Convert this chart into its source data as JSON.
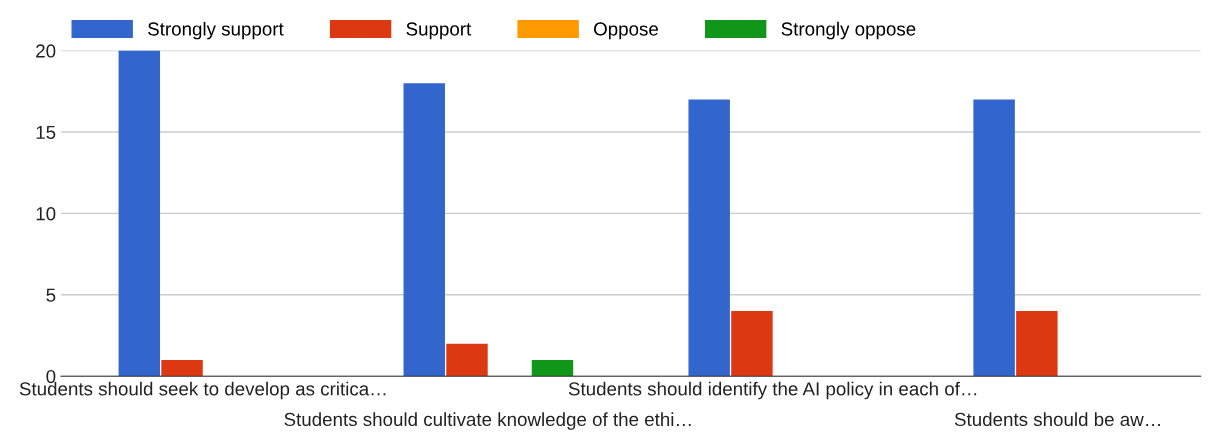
{
  "chart_data": {
    "type": "bar",
    "categories": [
      "Students should seek to develop as critica…",
      "Students should cultivate knowledge of the ethi…",
      "Students should identify the AI policy in each of…",
      "Students should be aw…"
    ],
    "series": [
      {
        "name": "Strongly support",
        "color": "#3366cc",
        "values": [
          20,
          18,
          17,
          17
        ]
      },
      {
        "name": "Support",
        "color": "#dc3912",
        "values": [
          1,
          2,
          4,
          4
        ]
      },
      {
        "name": "Oppose",
        "color": "#ff9900",
        "values": [
          0,
          0,
          0,
          0
        ]
      },
      {
        "name": "Strongly oppose",
        "color": "#109618",
        "values": [
          0,
          1,
          0,
          0
        ]
      }
    ],
    "ylim": [
      0,
      20
    ],
    "yticks": [
      0,
      5,
      10,
      15,
      20
    ],
    "grid": "y",
    "legend": "top"
  }
}
